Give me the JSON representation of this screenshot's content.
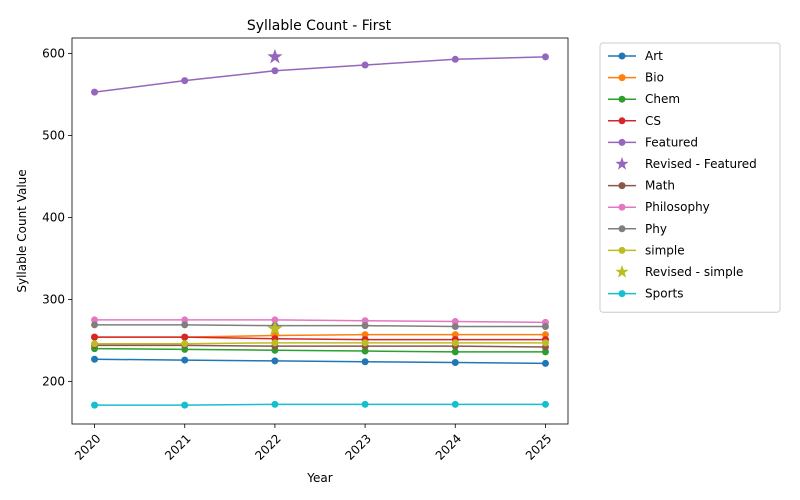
{
  "chart_data": {
    "type": "line",
    "title": "Syllable Count - First",
    "xlabel": "Year",
    "ylabel": "Syllable Count Value",
    "x": [
      2020,
      2021,
      2022,
      2023,
      2024,
      2025
    ],
    "x_tick_labels": [
      "2020",
      "2021",
      "2022",
      "2023",
      "2024",
      "2025"
    ],
    "y_ticks": [
      200,
      300,
      400,
      500,
      600
    ],
    "y_tick_labels": [
      "200",
      "300",
      "400",
      "500",
      "600"
    ],
    "xlim": [
      2019.75,
      2025.25
    ],
    "ylim": [
      148,
      619
    ],
    "grid": false,
    "legend_position": "outside right, top",
    "series": [
      {
        "name": "Art",
        "color": "#1f77b4",
        "marker": "circle",
        "values": [
          227,
          226,
          225,
          224,
          223,
          222
        ]
      },
      {
        "name": "Bio",
        "color": "#ff7f0e",
        "marker": "circle",
        "values": [
          254,
          254,
          256,
          257,
          257,
          257
        ]
      },
      {
        "name": "Chem",
        "color": "#2ca02c",
        "marker": "circle",
        "values": [
          240,
          239,
          238,
          237,
          236,
          236
        ]
      },
      {
        "name": "CS",
        "color": "#d62728",
        "marker": "circle",
        "values": [
          254,
          254,
          252,
          251,
          251,
          251
        ]
      },
      {
        "name": "Featured",
        "color": "#9467bd",
        "marker": "circle",
        "values": [
          553,
          567,
          579,
          586,
          593,
          596
        ]
      },
      {
        "name": "Revised - Featured",
        "color": "#9467bd",
        "marker": "star",
        "points": [
          {
            "x": 2022,
            "y": 596
          }
        ]
      },
      {
        "name": "Math",
        "color": "#8c564b",
        "marker": "circle",
        "values": [
          244,
          244,
          243,
          243,
          243,
          242
        ]
      },
      {
        "name": "Philosophy",
        "color": "#e377c2",
        "marker": "circle",
        "values": [
          275,
          275,
          275,
          274,
          273,
          272
        ]
      },
      {
        "name": "Phy",
        "color": "#7f7f7f",
        "marker": "circle",
        "values": [
          269,
          269,
          268,
          268,
          267,
          267
        ]
      },
      {
        "name": "simple",
        "color": "#bcbd22",
        "marker": "circle",
        "values": [
          246,
          246,
          247,
          247,
          247,
          247
        ]
      },
      {
        "name": "Revised - simple",
        "color": "#bcbd22",
        "marker": "star",
        "points": [
          {
            "x": 2022,
            "y": 264
          }
        ]
      },
      {
        "name": "Sports",
        "color": "#17becf",
        "marker": "circle",
        "values": [
          171,
          171,
          172,
          172,
          172,
          172
        ]
      }
    ]
  }
}
